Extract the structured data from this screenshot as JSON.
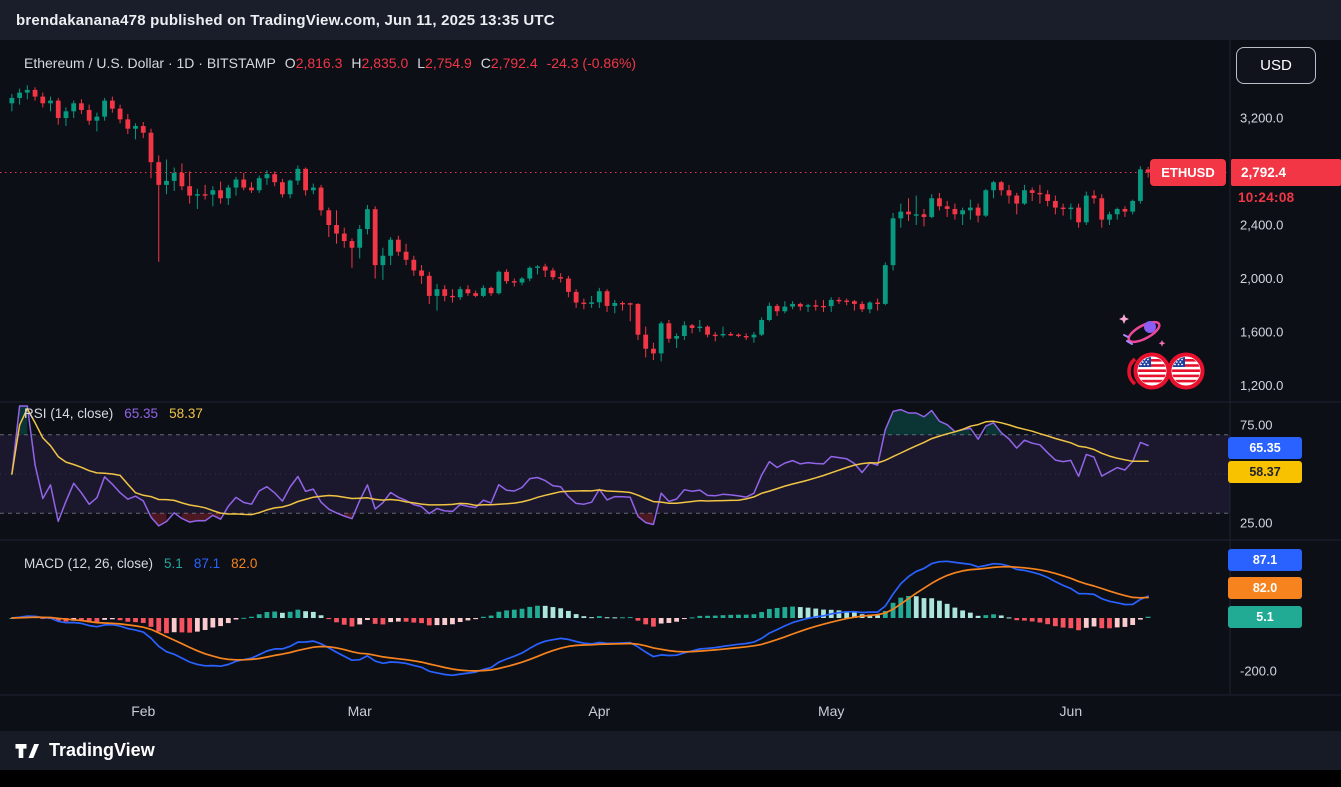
{
  "header": {
    "publisher": "brendakanana478 published on TradingView.com, Jun 11, 2025 13:35 UTC"
  },
  "chart": {
    "legend": {
      "symbol_title": "Ethereum / U.S. Dollar · 1D · BITSTAMP",
      "ohlc": [
        {
          "letter": "O",
          "value": "2,816.3"
        },
        {
          "letter": "H",
          "value": "2,835.0"
        },
        {
          "letter": "L",
          "value": "2,754.9"
        },
        {
          "letter": "C",
          "value": "2,792.4"
        }
      ],
      "change": "-24.3 (-0.86%)"
    },
    "currency_button": "USD",
    "symbol_badge": "ETHUSD",
    "price_badge": "2,792.4",
    "countdown": "10:24:08"
  },
  "rsi_panel": {
    "title": "RSI (14, close)",
    "value": "65.35",
    "ma_value": "58.37",
    "badge_value": "65.35",
    "badge_ma": "58.37"
  },
  "macd_panel": {
    "title": "MACD (12, 26, close)",
    "hist_value": "5.1",
    "macd_value": "87.1",
    "signal_value": "82.0",
    "badge_macd": "87.1",
    "badge_signal": "82.0",
    "badge_hist": "5.1"
  },
  "footer": {
    "brand": "TradingView"
  },
  "colors": {
    "up": "#089981",
    "down": "#f23645",
    "rsi_line": "#9264e8",
    "rsi_ma": "#f0c444",
    "rsi_band": "rgba(126,87,194,0.13)",
    "macd_line": "#2962ff",
    "signal_line": "#f7831e",
    "hist_grow_above": "#22ab94",
    "hist_fall_above": "#ace5dc",
    "hist_fall_below": "#f7525f",
    "hist_grow_below": "#fccbcd",
    "badge_blue": "#2962ff",
    "badge_yellow": "#f8c200",
    "badge_orange": "#f7831e",
    "badge_green": "#22ab94"
  },
  "chart_data": {
    "type": "candlestick",
    "title": "Ethereum / U.S. Dollar",
    "symbol": "ETHUSD",
    "exchange": "BITSTAMP",
    "interval": "1D",
    "last_price": 2792.4,
    "last_open": 2816.3,
    "last_high": 2835.0,
    "last_low": 2754.9,
    "last_close": 2792.4,
    "last_change": -24.3,
    "last_change_pct": -0.86,
    "price_axis_ticks": [
      {
        "value": 3200,
        "label": "3,200.0"
      },
      {
        "value": 2400,
        "label": "2,400.0"
      },
      {
        "value": 2000,
        "label": "2,000.0"
      },
      {
        "value": 1600,
        "label": "1,600.0"
      },
      {
        "value": 1200,
        "label": "1,200.0"
      }
    ],
    "month_ticks": [
      {
        "index": 17,
        "label": "Feb"
      },
      {
        "index": 45,
        "label": "Mar"
      },
      {
        "index": 76,
        "label": "Apr"
      },
      {
        "index": 106,
        "label": "May"
      },
      {
        "index": 137,
        "label": "Jun"
      }
    ],
    "indicators": {
      "rsi": {
        "title": "RSI (14, close)",
        "length": 14,
        "source": "close",
        "value": 65.35,
        "ma_value": 58.37,
        "upper_band": 70,
        "lower_band": 30,
        "axis_ticks": [
          {
            "value": 75,
            "label": "75.00"
          },
          {
            "value": 25,
            "label": "25.00"
          }
        ]
      },
      "macd": {
        "title": "MACD (12, 26, close)",
        "fast": 12,
        "slow": 26,
        "signal": 9,
        "hist_value": 5.1,
        "macd_value": 87.1,
        "signal_value": 82.0,
        "axis_ticks": [
          {
            "value": -200,
            "label": "-200.0"
          }
        ]
      }
    },
    "candles_ohlc": [
      [
        3310,
        3380,
        3250,
        3350
      ],
      [
        3350,
        3420,
        3300,
        3390
      ],
      [
        3390,
        3445,
        3340,
        3410
      ],
      [
        3410,
        3430,
        3330,
        3360
      ],
      [
        3360,
        3390,
        3280,
        3310
      ],
      [
        3310,
        3360,
        3250,
        3330
      ],
      [
        3330,
        3350,
        3150,
        3200
      ],
      [
        3200,
        3280,
        3140,
        3250
      ],
      [
        3250,
        3330,
        3200,
        3310
      ],
      [
        3310,
        3340,
        3230,
        3260
      ],
      [
        3260,
        3300,
        3150,
        3180
      ],
      [
        3180,
        3240,
        3100,
        3210
      ],
      [
        3210,
        3350,
        3180,
        3330
      ],
      [
        3330,
        3360,
        3240,
        3270
      ],
      [
        3270,
        3300,
        3160,
        3190
      ],
      [
        3190,
        3230,
        3080,
        3120
      ],
      [
        3120,
        3160,
        3040,
        3140
      ],
      [
        3140,
        3170,
        3050,
        3090
      ],
      [
        3090,
        3120,
        2750,
        2870
      ],
      [
        2870,
        2920,
        2125,
        2700
      ],
      [
        2700,
        2890,
        2630,
        2730
      ],
      [
        2730,
        2830,
        2655,
        2790
      ],
      [
        2790,
        2860,
        2660,
        2690
      ],
      [
        2690,
        2800,
        2560,
        2620
      ],
      [
        2620,
        2670,
        2520,
        2630
      ],
      [
        2630,
        2700,
        2590,
        2627
      ],
      [
        2627,
        2690,
        2540,
        2660
      ],
      [
        2660,
        2725,
        2560,
        2600
      ],
      [
        2600,
        2700,
        2550,
        2680
      ],
      [
        2680,
        2760,
        2620,
        2740
      ],
      [
        2740,
        2790,
        2660,
        2680
      ],
      [
        2680,
        2720,
        2640,
        2660
      ],
      [
        2660,
        2770,
        2640,
        2750
      ],
      [
        2750,
        2810,
        2700,
        2780
      ],
      [
        2780,
        2800,
        2690,
        2720
      ],
      [
        2720,
        2745,
        2605,
        2630
      ],
      [
        2630,
        2740,
        2600,
        2732
      ],
      [
        2732,
        2845,
        2700,
        2820
      ],
      [
        2820,
        2830,
        2620,
        2660
      ],
      [
        2660,
        2710,
        2630,
        2680
      ],
      [
        2680,
        2700,
        2470,
        2510
      ],
      [
        2510,
        2530,
        2310,
        2400
      ],
      [
        2400,
        2510,
        2260,
        2336
      ],
      [
        2336,
        2380,
        2230,
        2280
      ],
      [
        2280,
        2300,
        2080,
        2230
      ],
      [
        2230,
        2400,
        2150,
        2370
      ],
      [
        2370,
        2550,
        2330,
        2518
      ],
      [
        2518,
        2540,
        2000,
        2100
      ],
      [
        2100,
        2230,
        1990,
        2170
      ],
      [
        2170,
        2310,
        2100,
        2290
      ],
      [
        2290,
        2320,
        2170,
        2200
      ],
      [
        2200,
        2260,
        2100,
        2140
      ],
      [
        2140,
        2170,
        2020,
        2060
      ],
      [
        2060,
        2100,
        1960,
        2020
      ],
      [
        2020,
        2050,
        1810,
        1870
      ],
      [
        1870,
        1960,
        1760,
        1920
      ],
      [
        1920,
        1950,
        1830,
        1870
      ],
      [
        1870,
        1920,
        1820,
        1860
      ],
      [
        1860,
        1940,
        1840,
        1920
      ],
      [
        1920,
        1950,
        1870,
        1890
      ],
      [
        1890,
        1910,
        1860,
        1870
      ],
      [
        1870,
        1950,
        1860,
        1930
      ],
      [
        1930,
        1940,
        1870,
        1890
      ],
      [
        1890,
        2060,
        1880,
        2050
      ],
      [
        2050,
        2070,
        1960,
        1980
      ],
      [
        1980,
        2000,
        1940,
        1970
      ],
      [
        1970,
        2010,
        1950,
        2000
      ],
      [
        2000,
        2090,
        1980,
        2080
      ],
      [
        2080,
        2100,
        2030,
        2090
      ],
      [
        2090,
        2110,
        2010,
        2060
      ],
      [
        2060,
        2080,
        1990,
        2010
      ],
      [
        2010,
        2040,
        1970,
        2000
      ],
      [
        2000,
        2020,
        1860,
        1900
      ],
      [
        1900,
        1920,
        1780,
        1820
      ],
      [
        1820,
        1850,
        1770,
        1810
      ],
      [
        1810,
        1870,
        1780,
        1822
      ],
      [
        1822,
        1930,
        1780,
        1905
      ],
      [
        1905,
        1920,
        1750,
        1795
      ],
      [
        1795,
        1840,
        1740,
        1817
      ],
      [
        1817,
        1830,
        1760,
        1815
      ],
      [
        1815,
        1820,
        1680,
        1810
      ],
      [
        1810,
        1815,
        1540,
        1580
      ],
      [
        1580,
        1640,
        1410,
        1475
      ],
      [
        1475,
        1520,
        1390,
        1440
      ],
      [
        1440,
        1680,
        1380,
        1665
      ],
      [
        1665,
        1690,
        1520,
        1550
      ],
      [
        1550,
        1590,
        1480,
        1570
      ],
      [
        1570,
        1680,
        1540,
        1650
      ],
      [
        1650,
        1660,
        1590,
        1630
      ],
      [
        1630,
        1690,
        1600,
        1640
      ],
      [
        1640,
        1650,
        1560,
        1580
      ],
      [
        1580,
        1600,
        1530,
        1575
      ],
      [
        1575,
        1640,
        1560,
        1585
      ],
      [
        1585,
        1600,
        1570,
        1580
      ],
      [
        1580,
        1590,
        1560,
        1570
      ],
      [
        1570,
        1590,
        1540,
        1560
      ],
      [
        1560,
        1600,
        1520,
        1580
      ],
      [
        1580,
        1710,
        1570,
        1690
      ],
      [
        1690,
        1820,
        1680,
        1795
      ],
      [
        1795,
        1810,
        1720,
        1755
      ],
      [
        1755,
        1830,
        1740,
        1790
      ],
      [
        1790,
        1830,
        1770,
        1810
      ],
      [
        1810,
        1820,
        1760,
        1790
      ],
      [
        1790,
        1810,
        1750,
        1800
      ],
      [
        1800,
        1840,
        1760,
        1795
      ],
      [
        1795,
        1840,
        1750,
        1793
      ],
      [
        1793,
        1860,
        1750,
        1840
      ],
      [
        1840,
        1860,
        1810,
        1835
      ],
      [
        1835,
        1850,
        1800,
        1830
      ],
      [
        1830,
        1840,
        1760,
        1810
      ],
      [
        1810,
        1830,
        1750,
        1770
      ],
      [
        1770,
        1830,
        1740,
        1820
      ],
      [
        1820,
        1850,
        1760,
        1810
      ],
      [
        1810,
        2120,
        1800,
        2100
      ],
      [
        2100,
        2490,
        2060,
        2450
      ],
      [
        2450,
        2560,
        2380,
        2500
      ],
      [
        2500,
        2600,
        2430,
        2480
      ],
      [
        2480,
        2620,
        2400,
        2480
      ],
      [
        2480,
        2520,
        2390,
        2460
      ],
      [
        2460,
        2630,
        2450,
        2600
      ],
      [
        2600,
        2640,
        2510,
        2540
      ],
      [
        2540,
        2580,
        2460,
        2520
      ],
      [
        2520,
        2560,
        2440,
        2480
      ],
      [
        2480,
        2530,
        2400,
        2510
      ],
      [
        2510,
        2590,
        2440,
        2530
      ],
      [
        2530,
        2560,
        2420,
        2470
      ],
      [
        2470,
        2670,
        2460,
        2660
      ],
      [
        2660,
        2730,
        2600,
        2720
      ],
      [
        2720,
        2730,
        2620,
        2660
      ],
      [
        2660,
        2700,
        2560,
        2620
      ],
      [
        2620,
        2640,
        2480,
        2560
      ],
      [
        2560,
        2700,
        2550,
        2660
      ],
      [
        2660,
        2680,
        2580,
        2640
      ],
      [
        2640,
        2700,
        2560,
        2630
      ],
      [
        2630,
        2660,
        2540,
        2580
      ],
      [
        2580,
        2620,
        2480,
        2530
      ],
      [
        2530,
        2560,
        2470,
        2520
      ],
      [
        2520,
        2560,
        2440,
        2530
      ],
      [
        2530,
        2560,
        2380,
        2420
      ],
      [
        2420,
        2650,
        2400,
        2620
      ],
      [
        2620,
        2660,
        2560,
        2600
      ],
      [
        2600,
        2630,
        2380,
        2440
      ],
      [
        2440,
        2500,
        2400,
        2480
      ],
      [
        2480,
        2530,
        2440,
        2520
      ],
      [
        2520,
        2540,
        2460,
        2500
      ],
      [
        2500,
        2590,
        2480,
        2580
      ],
      [
        2580,
        2840,
        2560,
        2816
      ],
      [
        2816,
        2835,
        2754.9,
        2792.4
      ]
    ]
  }
}
